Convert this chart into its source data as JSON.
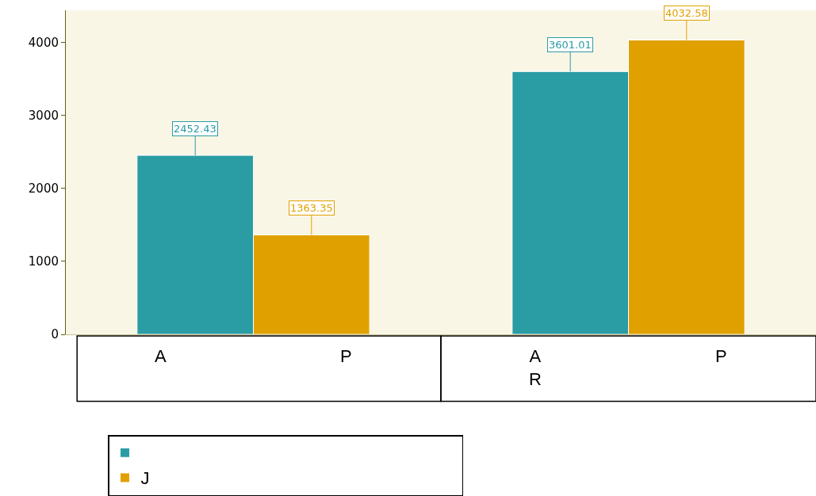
{
  "chart_data": {
    "type": "bar",
    "categories": [
      null,
      null
    ],
    "series": [
      {
        "color": "#2a9ca3",
        "values": [
          2452.43,
          3601.01
        ]
      },
      {
        "name": "J",
        "color": "#e0a100",
        "values": [
          1363.35,
          4032.58
        ]
      }
    ],
    "ylim": [
      0,
      4440
    ],
    "yticks": [
      0,
      1000,
      2000,
      3000,
      4000
    ],
    "grid": false,
    "data_labels": true,
    "legend": "bottom",
    "annotations": [
      "A",
      "P",
      "A\nR",
      "P"
    ]
  }
}
